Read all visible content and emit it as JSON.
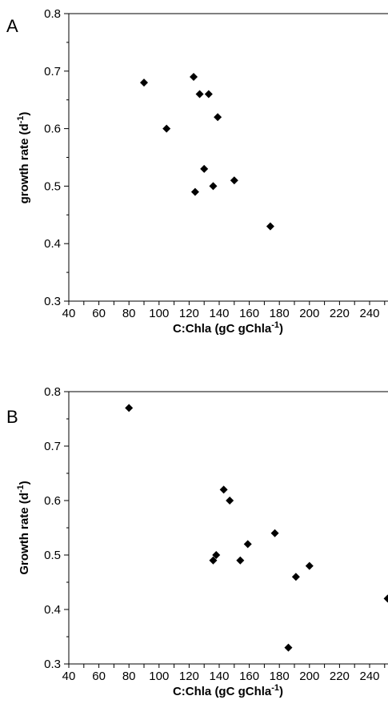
{
  "chart_data": [
    {
      "type": "scatter",
      "panel": "A",
      "xlabel": "C:Chla  (gC gChla",
      "xlabel_sup": "-1",
      "xlabel_tail": ")",
      "ylabel": "growth rate (d",
      "ylabel_sup": "-1",
      "ylabel_tail": ")",
      "ylim": [
        0.3,
        0.8
      ],
      "yticks": [
        "0.3",
        "0.4",
        "0.5",
        "0.6",
        "0.7",
        "0.8"
      ],
      "xtick_labels": [
        "40",
        "60",
        "80",
        "100",
        "120",
        "140",
        "160",
        "180",
        "200",
        "220",
        "240"
      ],
      "grid": false,
      "marker": "diamond",
      "marker_color": "#000000",
      "points": [
        {
          "x": 80,
          "y": 0.68
        },
        {
          "x": 95,
          "y": 0.6
        },
        {
          "x": 113,
          "y": 0.69
        },
        {
          "x": 117,
          "y": 0.66
        },
        {
          "x": 123,
          "y": 0.66
        },
        {
          "x": 129,
          "y": 0.62
        },
        {
          "x": 120,
          "y": 0.53
        },
        {
          "x": 114,
          "y": 0.49
        },
        {
          "x": 126,
          "y": 0.5
        },
        {
          "x": 140,
          "y": 0.51
        },
        {
          "x": 164,
          "y": 0.43
        }
      ]
    },
    {
      "type": "scatter",
      "panel": "B",
      "xlabel": "C:Chla  (gC gChla",
      "xlabel_sup": "-1",
      "xlabel_tail": ")",
      "ylabel": "Growth rate  (d",
      "ylabel_sup": "-1",
      "ylabel_tail": ")",
      "ylim": [
        0.3,
        0.8
      ],
      "yticks": [
        "0.3",
        "0.4",
        "0.5",
        "0.6",
        "0.7",
        "0.8"
      ],
      "xtick_labels": [
        "40",
        "60",
        "80",
        "100",
        "120",
        "140",
        "160",
        "180",
        "200",
        "220",
        "240"
      ],
      "grid": false,
      "marker": "diamond",
      "marker_color": "#000000",
      "points": [
        {
          "x": 70,
          "y": 0.77
        },
        {
          "x": 133,
          "y": 0.62
        },
        {
          "x": 137,
          "y": 0.6
        },
        {
          "x": 128,
          "y": 0.5
        },
        {
          "x": 126,
          "y": 0.49
        },
        {
          "x": 144,
          "y": 0.49
        },
        {
          "x": 149,
          "y": 0.52
        },
        {
          "x": 167,
          "y": 0.54
        },
        {
          "x": 181,
          "y": 0.46
        },
        {
          "x": 190,
          "y": 0.48
        },
        {
          "x": 176,
          "y": 0.33
        },
        {
          "x": 242,
          "y": 0.42
        }
      ]
    }
  ]
}
